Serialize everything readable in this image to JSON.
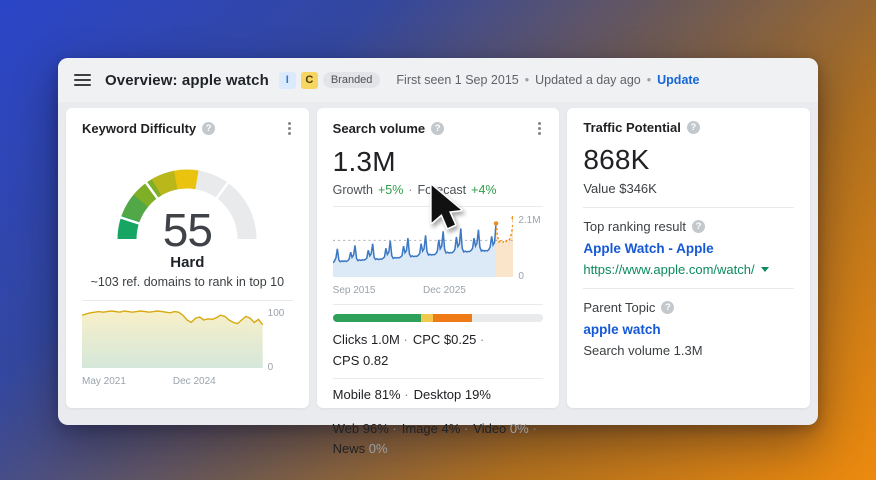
{
  "header": {
    "title": "Overview: apple watch",
    "badges": [
      {
        "label": "I"
      },
      {
        "label": "C"
      },
      {
        "label": "Branded"
      }
    ],
    "first_seen": "First seen 1 Sep 2015",
    "updated": "Updated a day ago",
    "separator": "•",
    "update_label": "Update"
  },
  "panels": {
    "keyword_difficulty": {
      "title": "Keyword Difficulty",
      "value": "55",
      "level": "Hard",
      "note": "~103 ref. domains to rank in top 10"
    },
    "search_volume": {
      "title": "Search volume",
      "value": "1.3M",
      "growth_label": "Growth",
      "growth_value": "+5%",
      "forecast_label": "Forecast",
      "forecast_value": "+4%",
      "dot": "·",
      "stat_rows": [
        {
          "items": [
            {
              "label": "Clicks",
              "value": "1.0M"
            },
            {
              "label": "CPC",
              "value": "$0.25"
            },
            {
              "label": "CPS",
              "value": "0.82"
            }
          ]
        },
        {
          "items": [
            {
              "label": "Mobile",
              "value": "81%"
            },
            {
              "label": "Desktop",
              "value": "19%"
            }
          ]
        },
        {
          "items": [
            {
              "label": "Web",
              "value": "96%"
            },
            {
              "label": "Image",
              "value": "4%"
            },
            {
              "label": "Video",
              "value": "0%",
              "muted": true
            },
            {
              "label": "News",
              "value": "0%",
              "muted": true
            }
          ]
        }
      ]
    },
    "traffic_potential": {
      "title": "Traffic Potential",
      "value": "868K",
      "value_row": "Value $346K",
      "top_ranking_label": "Top ranking result",
      "top_ranking_title": "Apple Watch - Apple",
      "top_ranking_url": "https://www.apple.com/watch/",
      "parent_topic_label": "Parent Topic",
      "parent_topic": "apple watch",
      "parent_topic_volume": "Search volume 1.3M"
    }
  },
  "colors": {
    "link_blue": "#1558d6",
    "update_blue": "#1766d8",
    "positive_green": "#2e9e4a",
    "url_green": "#0b8a5c",
    "volume_line_blue": "#3c78c4",
    "forecast_orange": "#ef8e1e",
    "kd_line_yellow": "#d7a912"
  },
  "chart_data": [
    {
      "id": "kd_gauge",
      "type": "gauge",
      "title": "Keyword Difficulty gauge",
      "value": 55,
      "min": 0,
      "max": 100,
      "value_label": "55",
      "level_label": "Hard",
      "fill_colors": [
        "#17a563",
        "#52a746",
        "#7fae27",
        "#b9b71a",
        "#eac30e"
      ],
      "track_color": "#e8eaec",
      "tick_positions": [
        10,
        30,
        70
      ]
    },
    {
      "id": "kd_history",
      "type": "area",
      "title": "Keyword Difficulty history",
      "x_start_label": "May 2021",
      "x_end_label": "Dec 2024",
      "y_max_label": "100",
      "y_min_label": "0",
      "ylim": [
        0,
        100
      ],
      "grid": false,
      "values": [
        88,
        90,
        92,
        93,
        94,
        93,
        94,
        95,
        94,
        93,
        95,
        94,
        93,
        94,
        95,
        94,
        93,
        94,
        95,
        94,
        93,
        92,
        94,
        93,
        88,
        80,
        76,
        83,
        85,
        80,
        82,
        81,
        84,
        88,
        86,
        80,
        76,
        74,
        80,
        86,
        83,
        76,
        81,
        72
      ],
      "line_color": "#d7a912",
      "fill_top": "#f8f0c9",
      "fill_bottom": "#d5e7da"
    },
    {
      "id": "search_volume_trend",
      "type": "line-area",
      "title": "Monthly search volume with forecast",
      "x_start_label": "Sep 2015",
      "x_end_label": "Dec 2025",
      "y_max_label": "2.1M",
      "y_min_label": "0",
      "ylim": [
        0,
        2.2
      ],
      "reference_value": 1.3,
      "forecast_start_index": 111,
      "values": [
        0.5,
        0.56,
        0.68,
        1.0,
        0.6,
        0.54,
        0.57,
        0.55,
        0.57,
        0.55,
        0.58,
        0.63,
        0.88,
        0.7,
        0.78,
        1.12,
        0.66,
        0.58,
        0.61,
        0.59,
        0.61,
        0.6,
        0.62,
        0.67,
        0.95,
        0.75,
        0.82,
        1.18,
        0.7,
        0.62,
        0.65,
        0.62,
        0.64,
        0.63,
        0.66,
        0.71,
        1.02,
        0.8,
        0.88,
        1.28,
        0.76,
        0.66,
        0.69,
        0.67,
        0.69,
        0.68,
        0.71,
        0.76,
        1.1,
        0.86,
        0.94,
        1.38,
        0.82,
        0.72,
        0.75,
        0.72,
        0.74,
        0.73,
        0.77,
        0.83,
        1.18,
        0.92,
        1.0,
        1.48,
        0.9,
        0.78,
        0.81,
        0.78,
        0.8,
        0.79,
        0.83,
        0.9,
        1.32,
        1.0,
        1.1,
        1.62,
        0.98,
        0.85,
        0.88,
        0.85,
        0.87,
        0.86,
        0.9,
        0.98,
        1.42,
        1.08,
        1.16,
        1.72,
        1.02,
        0.89,
        0.92,
        0.89,
        0.91,
        0.9,
        0.94,
        1.02,
        1.38,
        1.1,
        1.2,
        1.68,
        1.06,
        0.92,
        0.95,
        0.92,
        0.94,
        0.93,
        0.97,
        1.06,
        1.44,
        1.14,
        1.24,
        1.9,
        1.45,
        1.25,
        1.28,
        1.22,
        1.25,
        1.2,
        1.28,
        1.26,
        1.32,
        1.45,
        1.7,
        2.1
      ],
      "line_color": "#3c78c4",
      "fill_color": "#dce9f7",
      "forecast_line_color": "#ef8e1e",
      "forecast_fill_color": "#fae5cb",
      "reference_line_color": "#a9adb3"
    },
    {
      "id": "clicks_distribution",
      "type": "stacked-bar",
      "title": "Clicks distribution bar",
      "segments": [
        {
          "name": "organic",
          "color": "#2fa05a",
          "pct": 42
        },
        {
          "name": "paid",
          "color": "#f2c94c",
          "pct": 5.5
        },
        {
          "name": "other",
          "color": "#ee7b16",
          "pct": 18.5
        },
        {
          "name": "no-clicks",
          "color": "#e8eaec",
          "pct": 34
        }
      ]
    }
  ]
}
